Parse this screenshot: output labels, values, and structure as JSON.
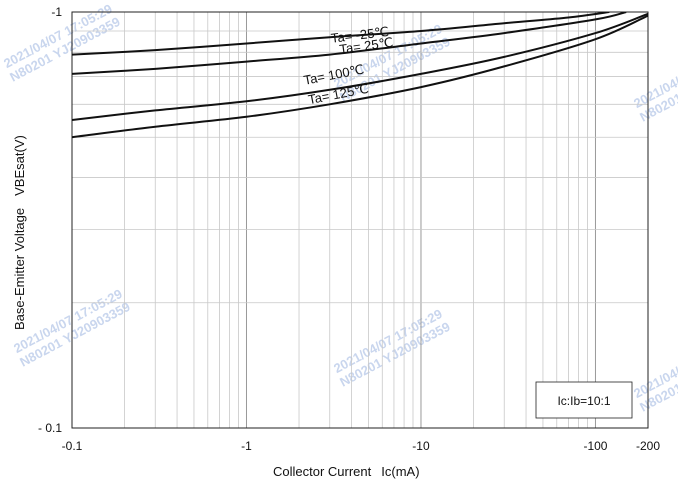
{
  "chart_data": {
    "type": "line",
    "title": "",
    "xlabel": "Collector Current",
    "xlabel_unit": "Ic(mA)",
    "ylabel": "Base-Emitter Voltage",
    "ylabel_symbol": "VBEsat(V)",
    "x_scale": "log",
    "y_scale": "log",
    "xlim": [
      -0.1,
      -200
    ],
    "ylim": [
      -0.1,
      -1
    ],
    "x_ticks": [
      {
        "value": -0.1,
        "label": "-0.1"
      },
      {
        "value": -1,
        "label": "-1"
      },
      {
        "value": -10,
        "label": "-10"
      },
      {
        "value": -100,
        "label": "-100"
      },
      {
        "value": -200,
        "label": "-200"
      }
    ],
    "y_ticks": [
      {
        "value": -1,
        "label": "-1"
      },
      {
        "value": -0.1,
        "label": "- 0.1"
      }
    ],
    "grid": true,
    "condition_box": "Ic:Ib=10:1",
    "series": [
      {
        "name": "Ta= -25℃",
        "x": [
          -0.1,
          -0.3,
          -1,
          -3,
          -10,
          -30,
          -70,
          -120
        ],
        "y": [
          -0.79,
          -0.81,
          -0.84,
          -0.87,
          -0.9,
          -0.94,
          -0.97,
          -1.0
        ]
      },
      {
        "name": "Ta= 25℃",
        "x": [
          -0.1,
          -0.3,
          -1,
          -3,
          -10,
          -30,
          -100,
          -150
        ],
        "y": [
          -0.71,
          -0.73,
          -0.76,
          -0.79,
          -0.84,
          -0.89,
          -0.96,
          -1.0
        ]
      },
      {
        "name": "Ta= 100℃",
        "x": [
          -0.1,
          -0.3,
          -1,
          -3,
          -10,
          -30,
          -100,
          -200
        ],
        "y": [
          -0.55,
          -0.58,
          -0.61,
          -0.65,
          -0.71,
          -0.78,
          -0.89,
          -0.99
        ]
      },
      {
        "name": "Ta= 125℃",
        "x": [
          -0.1,
          -0.3,
          -1,
          -3,
          -10,
          -30,
          -100,
          -200
        ],
        "y": [
          -0.5,
          -0.53,
          -0.56,
          -0.6,
          -0.66,
          -0.74,
          -0.86,
          -0.98
        ]
      }
    ],
    "watermark": "2021/04/07 17:05:29 N80201 YJ20903359"
  }
}
